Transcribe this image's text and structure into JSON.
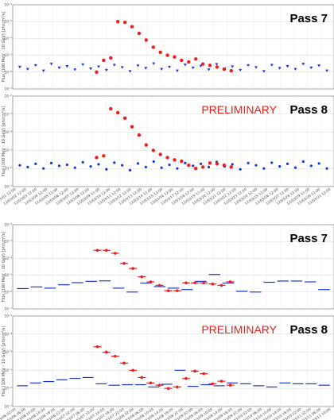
{
  "chart_data": [
    {
      "type": "scatter",
      "title": "Pass 7",
      "ylabel": "Flux (100 MeV - 10 GeV) [ph/cm²/s]",
      "yscale": "log",
      "ylim": [
        1e-07,
        0.01
      ],
      "ytick_labels": [
        "10⁻⁷",
        "10⁻⁶",
        "10⁻⁵",
        "10⁻⁴",
        "10⁻³",
        "10⁻²"
      ],
      "grid": true,
      "series": [
        {
          "color": "#1a35e0",
          "marker": "triangle-down",
          "y": [
            2e-06,
            1.5e-06,
            2.5e-06,
            1.2e-06,
            3e-06,
            1.8e-06,
            2.2e-06,
            1.4e-06,
            2.8e-06,
            1.6e-06,
            2.1e-06,
            1.3e-06,
            2.6e-06,
            1.9e-06,
            1.1e-06,
            2.4e-06,
            1.7e-06,
            3.2e-06,
            1.5e-06,
            2e-06,
            1.2e-06,
            2.7e-06,
            1.8e-06,
            2.3e-06,
            1.4e-06,
            2.9e-06,
            1.6e-06,
            2.1e-06,
            1.3e-06,
            2.5e-06,
            1.9e-06,
            1.1e-06,
            2.6e-06,
            1.7e-06,
            2.2e-06,
            1.5e-06,
            3e-06,
            1.8e-06,
            2.4e-06,
            1.2e-06
          ]
        },
        {
          "color": "#ee1c1c",
          "marker": "circle",
          "y": [
            1e-06,
            5e-06,
            7e-06,
            0.001,
            0.0009,
            0.0005,
            0.0002,
            8e-05,
            3e-05,
            1.5e-05,
            1e-05,
            8e-06,
            5e-06,
            4e-06,
            6e-06,
            3e-06,
            2.5e-06,
            2e-06,
            1.5e-06,
            1.2e-06
          ]
        }
      ]
    },
    {
      "type": "scatter",
      "title": "Pass 8",
      "annotation": "PRELIMINARY",
      "ylabel": "Flux (100 MeV - 10 GeV) [ph/cm²/s]",
      "yscale": "log",
      "ylim": [
        1e-07,
        0.01
      ],
      "ytick_labels": [
        "10⁻⁷",
        "10⁻⁶",
        "10⁻⁵",
        "10⁻⁴",
        "10⁻³",
        "10⁻²"
      ],
      "x_tick_labels": [
        "12/03/01 12:00",
        "12/03/02 12:00",
        "12/03/03 12:00",
        "12/03/04 12:00",
        "12/03/05 12:00",
        "12/03/06 12:00",
        "12/03/07 12:00",
        "12/03/08 12:00",
        "12/03/09 12:00",
        "12/03/10 12:00",
        "12/03/11 12:00",
        "12/03/12 12:00",
        "12/03/13 12:00",
        "12/03/14 12:00",
        "12/03/15 12:00",
        "12/03/16 12:00",
        "12/03/17 12:00",
        "12/03/18 12:00",
        "12/03/19 12:00",
        "12/03/20 12:00",
        "12/03/21 12:00",
        "12/03/22 12:00",
        "12/03/23 12:00",
        "12/03/24 12:00",
        "12/03/25 12:00",
        "12/03/26 12:00",
        "12/03/27 12:00",
        "12/03/28 12:00",
        "12/03/29 12:00",
        "12/03/30 12:00",
        "12/03/31 12:00"
      ],
      "grid": true,
      "series": [
        {
          "color": "#1a35e0",
          "marker": "circle",
          "y": [
            1.5e-06,
            1.2e-06,
            1.8e-06,
            1e-06,
            2e-06,
            1.4e-06,
            1.6e-06,
            1.1e-06,
            2.2e-06,
            1.3e-06,
            1.7e-06,
            9e-07,
            2.1e-06,
            1.5e-06,
            8e-07,
            1.9e-06,
            1.2e-06,
            2.4e-06,
            1.1e-06,
            1.6e-06,
            1e-06,
            2e-06,
            1.4e-06,
            1.8e-06,
            1.2e-06,
            2.3e-06,
            1.3e-06,
            1.7e-06,
            9e-07,
            2e-06,
            1.5e-06,
            1e-06,
            2.1e-06,
            1.3e-06,
            1.8e-06,
            1.1e-06,
            2.4e-06,
            1.4e-06,
            1.9e-06,
            1e-06
          ]
        },
        {
          "color": "#ee1c1c",
          "marker": "circle",
          "y": [
            4e-06,
            5e-06,
            0.002,
            0.0012,
            0.0006,
            0.0002,
            7e-05,
            2e-05,
            1e-05,
            6e-06,
            4e-06,
            3e-06,
            2.5e-06,
            1.5e-06,
            1e-06,
            1.2e-06,
            2e-06,
            1.8e-06,
            1.5e-06,
            1.2e-06
          ]
        }
      ]
    },
    {
      "type": "scatter",
      "title": "Pass 7",
      "ylabel": "Flux (100 MeV - 10 GeV) [ph/cm²/s]",
      "yscale": "log",
      "ylim": [
        1e-07,
        0.01
      ],
      "ytick_labels": [
        "10⁻⁷",
        "10⁻⁶",
        "10⁻⁵",
        "10⁻⁴",
        "10⁻³",
        "10⁻²"
      ],
      "grid": true,
      "series": [
        {
          "color": "#1a35e0",
          "marker": "hbar",
          "y": [
            1.6e-06,
            2e-06,
            1.7e-06,
            2.7e-06,
            3.6e-06,
            4.3e-06,
            4.6e-06,
            1.7e-06,
            1e-06,
            3.4e-06,
            2.1e-06,
            1.7e-06,
            1.4e-06,
            4.3e-06,
            1.1e-05,
            3.4e-06,
            1.1e-06,
            1e-06,
            3.8e-06,
            4.5e-06,
            4.5e-06,
            4e-06,
            1.4e-06
          ]
        },
        {
          "color": "#ee1c1c",
          "marker": "circle-errorbar",
          "y": [
            0.0003,
            0.0003,
            0.0002,
            5e-05,
            2.5e-05,
            8e-06,
            4e-06,
            2.5e-06,
            1.2e-06,
            1.2e-06,
            3.5e-06,
            3.5e-06,
            3.5e-06,
            3e-06,
            2.5e-06,
            4e-06
          ]
        }
      ]
    },
    {
      "type": "scatter",
      "title": "Pass 8",
      "annotation": "PRELIMINARY",
      "ylabel": "Flux (100 MeV - 10 GeV) [ph/cm²/s]",
      "yscale": "log",
      "ylim": [
        1e-07,
        0.01
      ],
      "ytick_labels": [
        "10⁻⁷",
        "10⁻⁶",
        "10⁻⁵",
        "10⁻⁴",
        "10⁻³",
        "10⁻²"
      ],
      "x_tick_labels": [
        "12/03/06 02:00",
        "12/03/06 06:00",
        "12/03/06 10:00",
        "12/03/06 14:00",
        "12/03/06 18:00",
        "12/03/06 22:00",
        "12/03/07 02:00",
        "12/03/07 06:00",
        "12/03/07 10:00",
        "12/03/07 14:00",
        "12/03/07 18:00",
        "12/03/07 22:00",
        "12/03/08 02:00",
        "12/03/08 06:00",
        "12/03/08 10:00",
        "12/03/08 14:00",
        "12/03/08 18:00",
        "12/03/08 22:00",
        "12/03/09 02:00",
        "12/03/09 06:00",
        "12/03/09 10:00",
        "12/03/09 14:00",
        "12/03/09 18:00",
        "12/03/09 22:00",
        "12/03/10 02:00",
        "12/03/10 06:00",
        "12/03/10 10:00",
        "12/03/10 14:00",
        "12/03/10 18:00",
        "12/03/10 22:00",
        "12/03/11 02:00",
        "12/03/11 06:00",
        "12/03/11 10:00"
      ],
      "grid": true,
      "series": [
        {
          "color": "#1a35e0",
          "marker": "hbar",
          "y": [
            1.4e-06,
            2e-06,
            2.4e-06,
            3e-06,
            3.6e-06,
            4e-06,
            1.8e-06,
            1.5e-06,
            1.6e-06,
            1.6e-06,
            1.2e-06,
            1.7e-06,
            1e-05,
            1.3e-06,
            1.6e-06,
            1.4e-06,
            2e-06,
            1.8e-06,
            1.4e-06,
            1.2e-06,
            2e-06,
            1.8e-06,
            1.8e-06,
            1.5e-06
          ]
        },
        {
          "color": "#ee1c1c",
          "marker": "circle-errorbar",
          "y": [
            0.0002,
            0.0001,
            6e-05,
            2.5e-05,
            1e-05,
            4e-06,
            2e-06,
            1.5e-06,
            1e-06,
            1.2e-06,
            3.5e-06,
            9e-06,
            6.5e-06,
            1.8e-06,
            2.5e-06,
            1.5e-06
          ]
        }
      ]
    }
  ]
}
